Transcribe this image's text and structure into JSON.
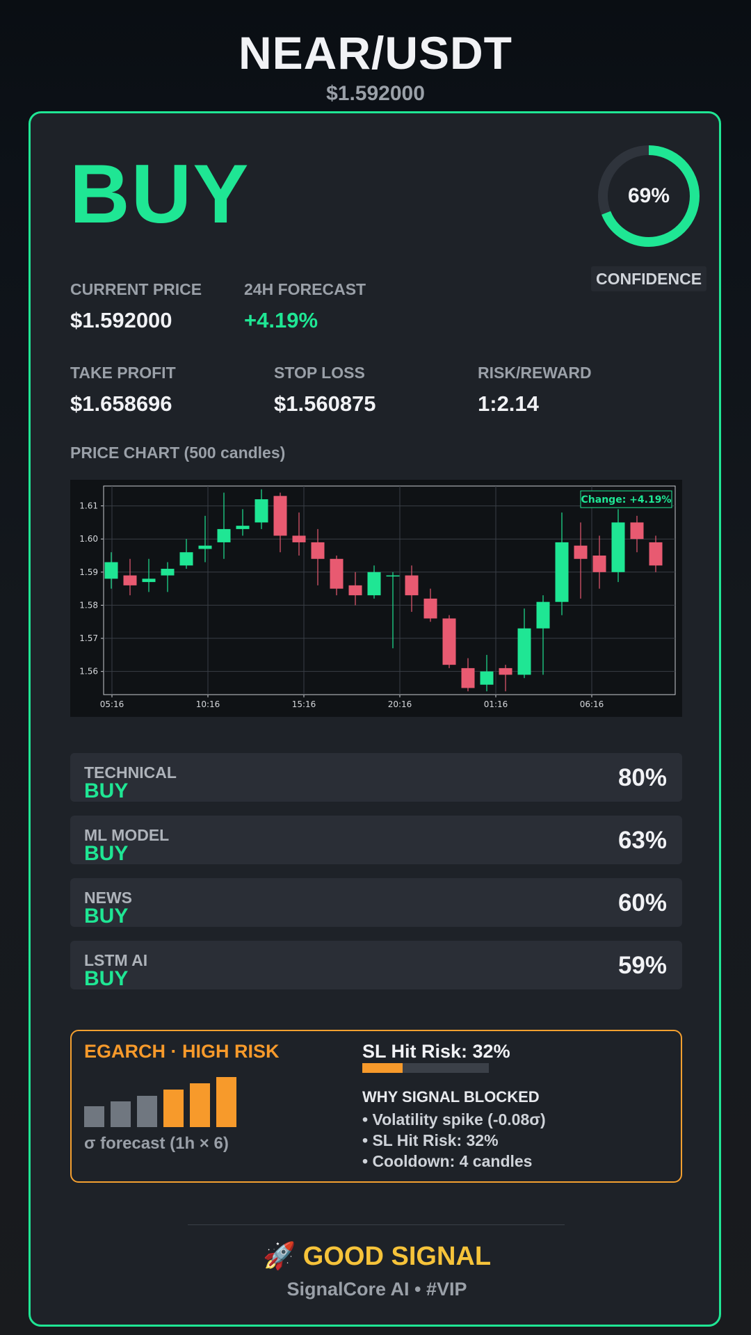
{
  "header": {
    "pair": "NEAR/USDT",
    "price": "$1.592000"
  },
  "signal": {
    "action": "BUY",
    "confidence_value": 69,
    "confidence_text": "69%",
    "confidence_label": "CONFIDENCE"
  },
  "metrics": {
    "current_price_label": "CURRENT PRICE",
    "current_price": "$1.592000",
    "forecast_label": "24H FORECAST",
    "forecast": "+4.19%",
    "take_profit_label": "TAKE PROFIT",
    "take_profit": "$1.658696",
    "stop_loss_label": "STOP LOSS",
    "stop_loss": "$1.560875",
    "rr_label": "RISK/REWARD",
    "rr": "1:2.14"
  },
  "chart": {
    "title": "PRICE CHART (500 candles)",
    "annotation": "Change: +4.19%"
  },
  "chart_data": {
    "type": "candlestick",
    "x_ticks": [
      "05:16",
      "10:16",
      "15:16",
      "20:16",
      "01:16",
      "06:16"
    ],
    "y_ticks": [
      1.56,
      1.57,
      1.58,
      1.59,
      1.6,
      1.61
    ],
    "ylim": [
      1.553,
      1.616
    ],
    "candles": [
      {
        "o": 1.588,
        "h": 1.596,
        "l": 1.585,
        "c": 1.593
      },
      {
        "o": 1.589,
        "h": 1.594,
        "l": 1.583,
        "c": 1.586
      },
      {
        "o": 1.587,
        "h": 1.594,
        "l": 1.584,
        "c": 1.588
      },
      {
        "o": 1.589,
        "h": 1.593,
        "l": 1.584,
        "c": 1.591
      },
      {
        "o": 1.592,
        "h": 1.6,
        "l": 1.591,
        "c": 1.596
      },
      {
        "o": 1.597,
        "h": 1.607,
        "l": 1.593,
        "c": 1.598
      },
      {
        "o": 1.599,
        "h": 1.614,
        "l": 1.594,
        "c": 1.603
      },
      {
        "o": 1.603,
        "h": 1.609,
        "l": 1.601,
        "c": 1.604
      },
      {
        "o": 1.605,
        "h": 1.615,
        "l": 1.603,
        "c": 1.612
      },
      {
        "o": 1.613,
        "h": 1.614,
        "l": 1.596,
        "c": 1.601
      },
      {
        "o": 1.601,
        "h": 1.608,
        "l": 1.595,
        "c": 1.599
      },
      {
        "o": 1.599,
        "h": 1.603,
        "l": 1.586,
        "c": 1.594
      },
      {
        "o": 1.594,
        "h": 1.595,
        "l": 1.583,
        "c": 1.585
      },
      {
        "o": 1.586,
        "h": 1.59,
        "l": 1.58,
        "c": 1.583
      },
      {
        "o": 1.583,
        "h": 1.592,
        "l": 1.582,
        "c": 1.59
      },
      {
        "o": 1.589,
        "h": 1.59,
        "l": 1.567,
        "c": 1.589
      },
      {
        "o": 1.589,
        "h": 1.592,
        "l": 1.578,
        "c": 1.583
      },
      {
        "o": 1.582,
        "h": 1.585,
        "l": 1.575,
        "c": 1.576
      },
      {
        "o": 1.576,
        "h": 1.577,
        "l": 1.561,
        "c": 1.562
      },
      {
        "o": 1.561,
        "h": 1.564,
        "l": 1.554,
        "c": 1.555
      },
      {
        "o": 1.556,
        "h": 1.565,
        "l": 1.554,
        "c": 1.56
      },
      {
        "o": 1.561,
        "h": 1.562,
        "l": 1.554,
        "c": 1.559
      },
      {
        "o": 1.559,
        "h": 1.579,
        "l": 1.558,
        "c": 1.573
      },
      {
        "o": 1.573,
        "h": 1.583,
        "l": 1.559,
        "c": 1.581
      },
      {
        "o": 1.581,
        "h": 1.608,
        "l": 1.577,
        "c": 1.599
      },
      {
        "o": 1.598,
        "h": 1.605,
        "l": 1.582,
        "c": 1.594
      },
      {
        "o": 1.595,
        "h": 1.601,
        "l": 1.585,
        "c": 1.59
      },
      {
        "o": 1.59,
        "h": 1.609,
        "l": 1.587,
        "c": 1.605
      },
      {
        "o": 1.605,
        "h": 1.607,
        "l": 1.596,
        "c": 1.6
      },
      {
        "o": 1.599,
        "h": 1.601,
        "l": 1.59,
        "c": 1.592
      }
    ]
  },
  "signals": [
    {
      "name": "TECHNICAL",
      "value": "BUY",
      "pct": "80%"
    },
    {
      "name": "ML MODEL",
      "value": "BUY",
      "pct": "63%"
    },
    {
      "name": "NEWS",
      "value": "BUY",
      "pct": "60%"
    },
    {
      "name": "LSTM AI",
      "value": "BUY",
      "pct": "59%"
    }
  ],
  "risk": {
    "title": "EGARCH · HIGH RISK",
    "sigma_label": "σ forecast (1h × 6)",
    "sigma_forecast": [
      0.3,
      0.37,
      0.45,
      0.54,
      0.63,
      0.72
    ],
    "sl_hit_label": "SL Hit Risk: 32%",
    "sl_hit_value": 0.32,
    "why_title": "WHY SIGNAL BLOCKED",
    "reasons": [
      "• Volatility spike (-0.08σ)",
      "• SL Hit Risk: 32%",
      "• Cooldown: 4 candles"
    ]
  },
  "footer": {
    "badge": "🚀 GOOD SIGNAL",
    "brand": "SignalCore AI • #VIP"
  },
  "colors": {
    "accent": "#1fe694",
    "bear": "#e85a71",
    "warning": "#f79a2b",
    "gold": "#f6c33a"
  }
}
